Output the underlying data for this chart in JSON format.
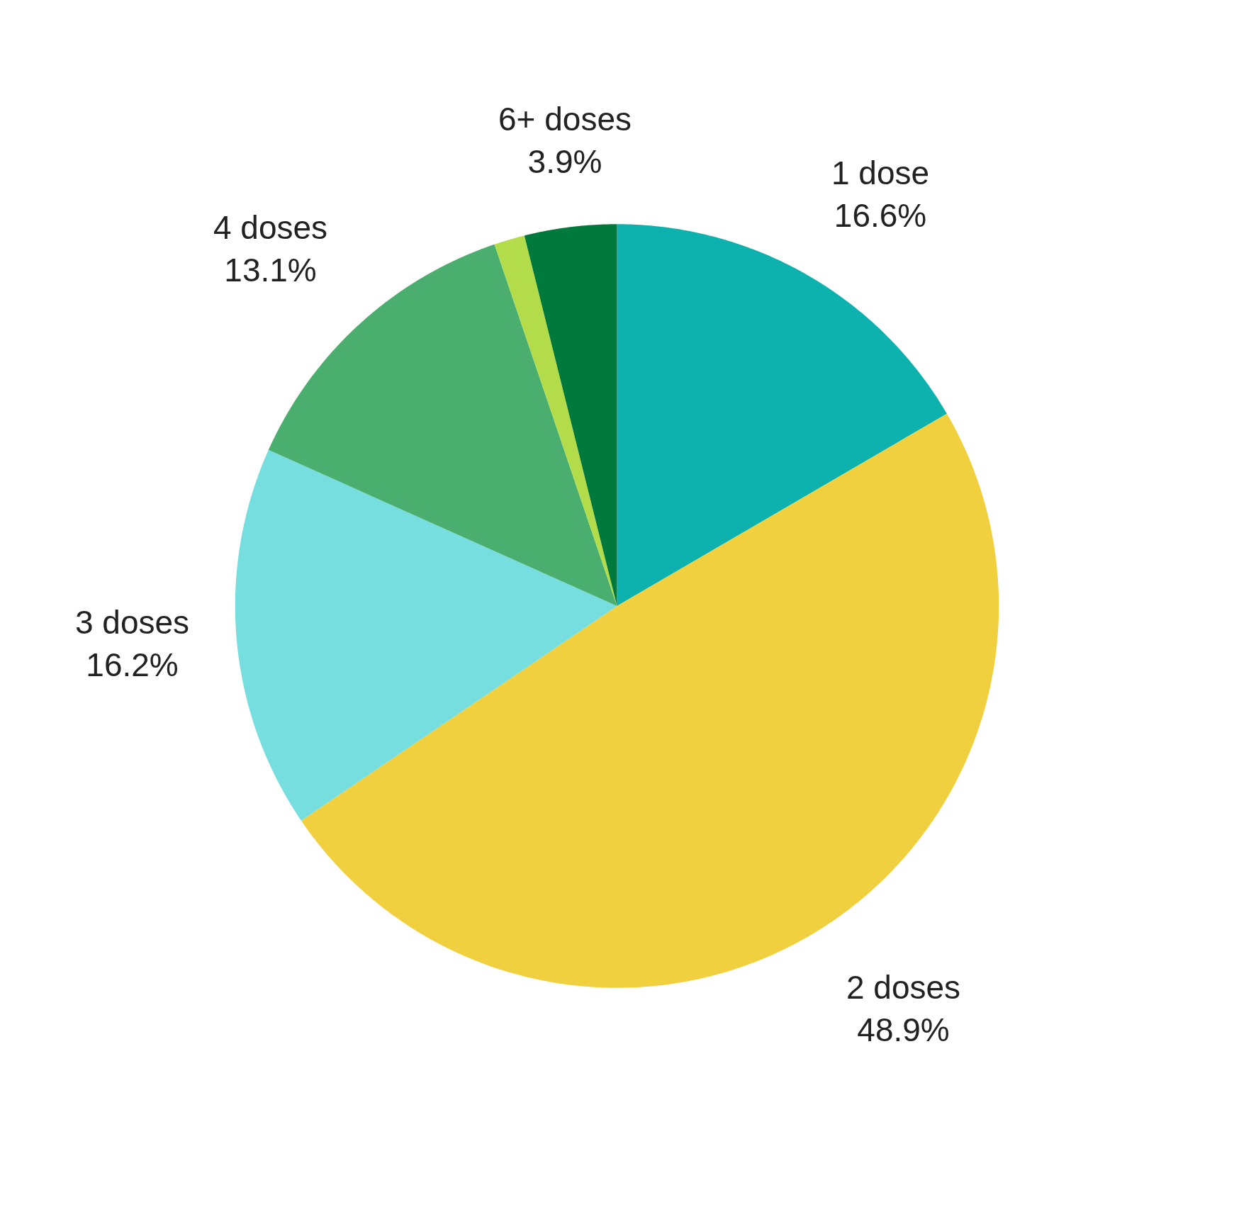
{
  "chart_data": {
    "type": "pie",
    "categories": [
      "1 dose",
      "2 doses",
      "3 doses",
      "4 doses",
      null,
      "6+ doses"
    ],
    "values": [
      16.6,
      48.9,
      16.2,
      13.1,
      1.3,
      3.9
    ],
    "value_labels": [
      "16.6%",
      "48.9%",
      "16.2%",
      "13.1%",
      null,
      "3.9%"
    ],
    "colors": [
      "#0db1ae",
      "#f0d03e",
      "#76dede",
      "#4aae6f",
      "#b3dc4a",
      "#00793d"
    ],
    "legend": false
  }
}
